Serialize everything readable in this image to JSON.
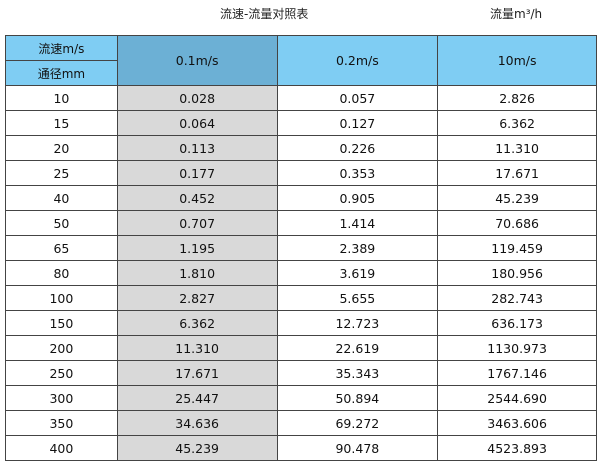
{
  "title": "流速-流量对照表",
  "unit": "流量m³/h",
  "header": {
    "velocity_label": "流速m/s",
    "diameter_label": "通径mm",
    "columns": [
      "0.1m/s",
      "0.2m/s",
      "10m/s"
    ]
  },
  "colors": {
    "header": "#7fcdf3",
    "selected_header": "#6cb0d5",
    "highlight_column": "#d9d9d9"
  },
  "rows": [
    [
      "10",
      "0.028",
      "0.057",
      "2.826"
    ],
    [
      "15",
      "0.064",
      "0.127",
      "6.362"
    ],
    [
      "20",
      "0.113",
      "0.226",
      "11.310"
    ],
    [
      "25",
      "0.177",
      "0.353",
      "17.671"
    ],
    [
      "40",
      "0.452",
      "0.905",
      "45.239"
    ],
    [
      "50",
      "0.707",
      "1.414",
      "70.686"
    ],
    [
      "65",
      "1.195",
      "2.389",
      "119.459"
    ],
    [
      "80",
      "1.810",
      "3.619",
      "180.956"
    ],
    [
      "100",
      "2.827",
      "5.655",
      "282.743"
    ],
    [
      "150",
      "6.362",
      "12.723",
      "636.173"
    ],
    [
      "200",
      "11.310",
      "22.619",
      "1130.973"
    ],
    [
      "250",
      "17.671",
      "35.343",
      "1767.146"
    ],
    [
      "300",
      "25.447",
      "50.894",
      "2544.690"
    ],
    [
      "350",
      "34.636",
      "69.272",
      "3463.606"
    ],
    [
      "400",
      "45.239",
      "90.478",
      "4523.893"
    ]
  ]
}
